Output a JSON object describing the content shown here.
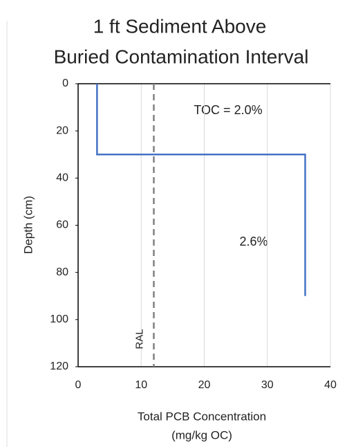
{
  "chart_data": {
    "type": "line",
    "title": [
      "1 ft Sediment Above",
      "Buried Contamination Interval"
    ],
    "x_label": [
      "Total PCB Concentration",
      "(mg/kg OC)"
    ],
    "y_label": "Depth (cm)",
    "series": [
      {
        "color": "#4472c4",
        "x": [
          3,
          3,
          36,
          36
        ],
        "values": [
          0,
          30,
          30,
          90
        ]
      }
    ],
    "xlim": [
      0,
      40
    ],
    "xticks": [
      0,
      10,
      20,
      30,
      40
    ],
    "ylim": [
      0,
      120
    ],
    "yticks": [
      0,
      20,
      40,
      60,
      80,
      100,
      120
    ],
    "y_inverted": true,
    "grid": "x",
    "reference_line": {
      "label": "RAL",
      "x": 12,
      "color": "#808080"
    },
    "annotations": [
      {
        "text": "TOC = 2.0%",
        "color": "#ed7d31"
      },
      {
        "text": "2.6%",
        "color": "#ed7d31"
      }
    ]
  }
}
